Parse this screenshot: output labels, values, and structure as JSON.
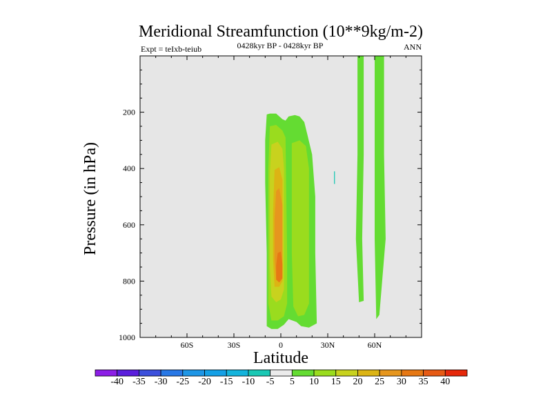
{
  "chart_data": {
    "type": "contour",
    "title": "Meridional Streamfunction (10**9kg/m-2)",
    "left_label": "Expt = teIxb-teiub",
    "center_label": "0428kyr BP - 0428kyr BP",
    "right_label": "ANN",
    "xlabel": "Latitude",
    "ylabel": "Pressure (in hPa)",
    "xlim": [
      -90,
      90
    ],
    "ylim": [
      1000,
      0
    ],
    "x_ticks": [
      {
        "value": -60,
        "label": "60S"
      },
      {
        "value": -30,
        "label": "30S"
      },
      {
        "value": 0,
        "label": "0"
      },
      {
        "value": 30,
        "label": "30N"
      },
      {
        "value": 60,
        "label": "60N"
      }
    ],
    "y_ticks": [
      {
        "value": 200,
        "label": "200"
      },
      {
        "value": 400,
        "label": "400"
      },
      {
        "value": 600,
        "label": "600"
      },
      {
        "value": 800,
        "label": "800"
      },
      {
        "value": 1000,
        "label": "1000"
      }
    ],
    "background_color": "#e6e6e6",
    "colorbar": {
      "labels": [
        "-40",
        "-35",
        "-30",
        "-25",
        "-20",
        "-15",
        "-10",
        "-5",
        "5",
        "10",
        "15",
        "20",
        "25",
        "30",
        "35",
        "40"
      ],
      "colors": [
        "#8c1ee6",
        "#5a1edc",
        "#3c50dc",
        "#2878e6",
        "#1e96e6",
        "#14a0e6",
        "#14b4dc",
        "#19c8b4",
        "#ebebeb",
        "#64dc32",
        "#9adc1e",
        "#c8d21e",
        "#dcb414",
        "#e6961e",
        "#e67814",
        "#e65a14",
        "#e6280a"
      ]
    },
    "regions": [
      {
        "name": "nh-polar-cell-outer",
        "level": 5,
        "color": "#64dc32",
        "points": [
          [
            49,
            0
          ],
          [
            53,
            0
          ],
          [
            53,
            350
          ],
          [
            52,
            650
          ],
          [
            53,
            870
          ],
          [
            50,
            875
          ],
          [
            48,
            650
          ],
          [
            49,
            350
          ]
        ]
      },
      {
        "name": "nh-polar-cell-inner",
        "level": 5,
        "color": "#64dc32",
        "points": [
          [
            60,
            0
          ],
          [
            66,
            0
          ],
          [
            66,
            350
          ],
          [
            67,
            650
          ],
          [
            63,
            920
          ],
          [
            61,
            935
          ],
          [
            60,
            650
          ]
        ]
      },
      {
        "name": "tropical-cell-5",
        "level": 5,
        "color": "#64dc32",
        "points": [
          [
            -9,
            208
          ],
          [
            -7,
            205
          ],
          [
            -3,
            205
          ],
          [
            1,
            225
          ],
          [
            3,
            230
          ],
          [
            5,
            215
          ],
          [
            9,
            210
          ],
          [
            12,
            215
          ],
          [
            15,
            235
          ],
          [
            17,
            280
          ],
          [
            20,
            350
          ],
          [
            22,
            500
          ],
          [
            22,
            700
          ],
          [
            23,
            950
          ],
          [
            18,
            965
          ],
          [
            13,
            960
          ],
          [
            10,
            945
          ],
          [
            5,
            935
          ],
          [
            2,
            955
          ],
          [
            -2,
            970
          ],
          [
            -6,
            970
          ],
          [
            -9,
            960
          ],
          [
            -9,
            700
          ],
          [
            -10,
            450
          ],
          [
            -10,
            300
          ]
        ]
      },
      {
        "name": "tropical-cell-10-south",
        "level": 10,
        "color": "#9adc1e",
        "points": [
          [
            -7,
            250
          ],
          [
            -3,
            245
          ],
          [
            1,
            265
          ],
          [
            3,
            290
          ],
          [
            4,
            700
          ],
          [
            4,
            880
          ],
          [
            2,
            925
          ],
          [
            -2,
            940
          ],
          [
            -6,
            940
          ],
          [
            -8,
            880
          ],
          [
            -8,
            650
          ],
          [
            -8,
            400
          ]
        ]
      },
      {
        "name": "tropical-cell-10-north",
        "level": 10,
        "color": "#9adc1e",
        "points": [
          [
            7,
            310
          ],
          [
            12,
            300
          ],
          [
            16,
            320
          ],
          [
            18,
            400
          ],
          [
            18,
            700
          ],
          [
            18,
            880
          ],
          [
            15,
            920
          ],
          [
            11,
            925
          ],
          [
            8,
            890
          ],
          [
            7,
            700
          ],
          [
            7,
            400
          ]
        ]
      },
      {
        "name": "tropical-cell-15",
        "level": 15,
        "color": "#c8d21e",
        "points": [
          [
            -6,
            315
          ],
          [
            -2,
            305
          ],
          [
            1,
            330
          ],
          [
            2,
            400
          ],
          [
            2,
            700
          ],
          [
            2,
            830
          ],
          [
            0,
            865
          ],
          [
            -3,
            875
          ],
          [
            -6,
            855
          ],
          [
            -7,
            750
          ],
          [
            -7,
            600
          ],
          [
            -7,
            420
          ]
        ]
      },
      {
        "name": "tropical-cell-20",
        "level": 20,
        "color": "#dcb414",
        "points": [
          [
            -4,
            405
          ],
          [
            -1,
            395
          ],
          [
            1,
            440
          ],
          [
            1,
            650
          ],
          [
            1,
            800
          ],
          [
            -1,
            820
          ],
          [
            -4,
            820
          ],
          [
            -5,
            720
          ],
          [
            -5,
            560
          ]
        ]
      },
      {
        "name": "tropical-cell-25",
        "level": 25,
        "color": "#e6961e",
        "points": [
          [
            -3,
            480
          ],
          [
            -1,
            470
          ],
          [
            1,
            530
          ],
          [
            1,
            650
          ],
          [
            1,
            760
          ],
          [
            -1,
            790
          ],
          [
            -3,
            790
          ],
          [
            -4,
            720
          ],
          [
            -4,
            580
          ]
        ]
      },
      {
        "name": "tropical-cell-30",
        "level": 30,
        "color": "#e67814",
        "points": [
          [
            -2,
            700
          ],
          [
            0,
            695
          ],
          [
            1,
            740
          ],
          [
            1,
            790
          ],
          [
            -1,
            805
          ],
          [
            -3,
            795
          ],
          [
            -3,
            745
          ]
        ]
      },
      {
        "name": "small-negative-patch",
        "level": -5,
        "color": "#19c8b4",
        "points": [
          [
            34,
            410
          ],
          [
            34.6,
            410
          ],
          [
            34.6,
            455
          ],
          [
            34,
            455
          ]
        ]
      }
    ]
  }
}
